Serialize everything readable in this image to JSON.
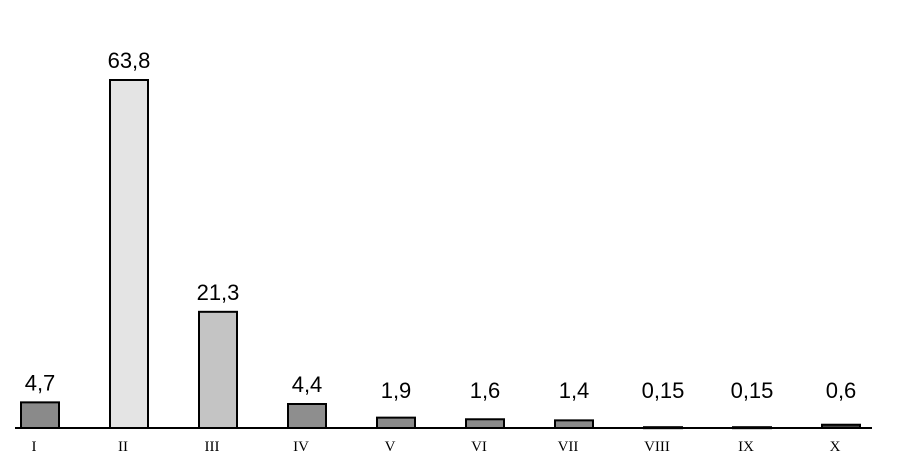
{
  "chart_data": {
    "type": "bar",
    "categories": [
      "I",
      "II",
      "III",
      "IV",
      "V",
      "VI",
      "VII",
      "VIII",
      "IX",
      "X"
    ],
    "values": [
      4.7,
      63.8,
      21.3,
      4.4,
      1.9,
      1.6,
      1.4,
      0.15,
      0.15,
      0.6
    ],
    "value_labels": [
      "4,7",
      "63,8",
      "21,3",
      "4,4",
      "1,9",
      "1,6",
      "1,4",
      "0,15",
      "0,15",
      "0,6"
    ],
    "colors": [
      "#8a8a8a",
      "#e4e4e4",
      "#c4c4c4",
      "#8e8e8e",
      "#8a8a8a",
      "#8a8a8a",
      "#8a8a8a",
      "#555555",
      "#555555",
      "#444444"
    ]
  }
}
